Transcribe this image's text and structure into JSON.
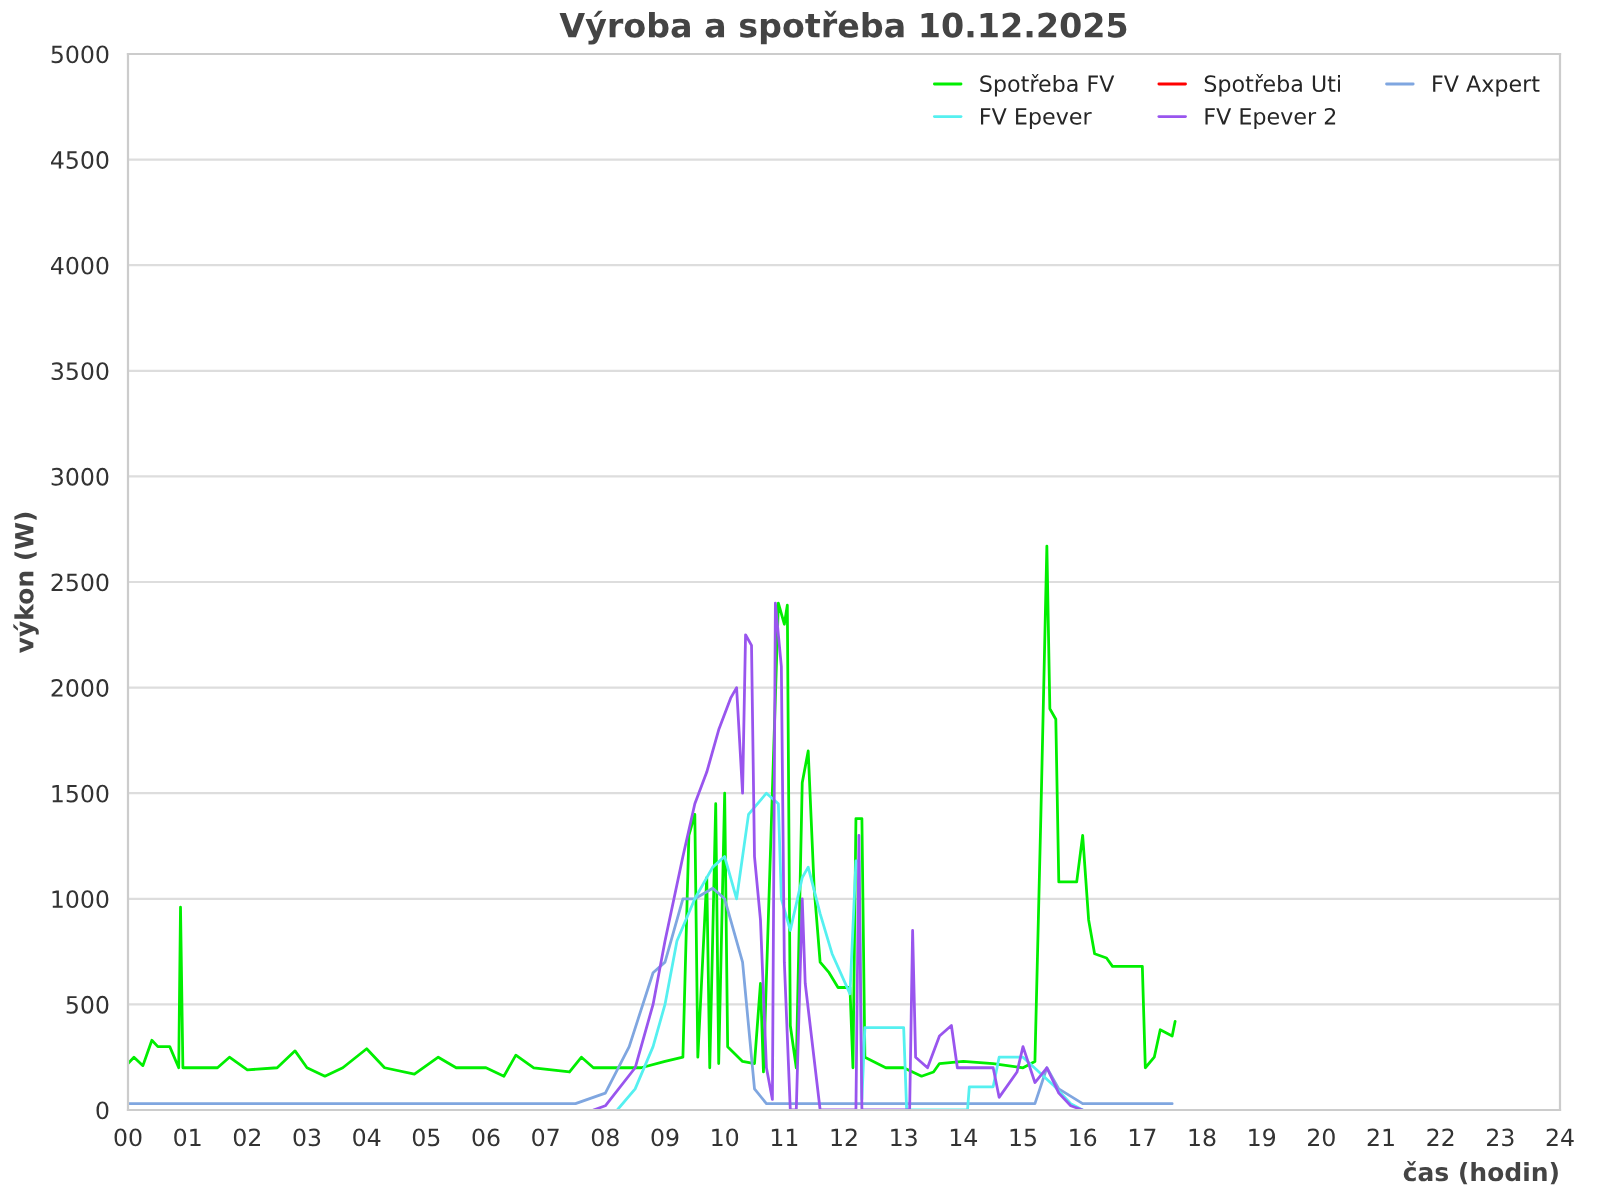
{
  "chart_data": {
    "type": "line",
    "title": "Výroba a spotřeba 10.12.2025",
    "xlabel": "čas (hodin)",
    "ylabel": "výkon (W)",
    "xlim": [
      0,
      24
    ],
    "ylim": [
      0,
      5000
    ],
    "xticks": [
      {
        "value": 0,
        "label": "00"
      },
      {
        "value": 1,
        "label": "01"
      },
      {
        "value": 2,
        "label": "02"
      },
      {
        "value": 3,
        "label": "03"
      },
      {
        "value": 4,
        "label": "04"
      },
      {
        "value": 5,
        "label": "05"
      },
      {
        "value": 6,
        "label": "06"
      },
      {
        "value": 7,
        "label": "07"
      },
      {
        "value": 8,
        "label": "08"
      },
      {
        "value": 9,
        "label": "09"
      },
      10,
      11,
      12,
      13,
      14,
      15,
      16,
      17,
      18,
      19,
      20,
      21,
      22,
      23,
      24
    ],
    "yticks": [
      0,
      500,
      1000,
      1500,
      2000,
      2500,
      3000,
      3500,
      4000,
      4500,
      5000
    ],
    "grid": "y",
    "legend": "top right",
    "series": [
      {
        "name": "Spotřeba FV",
        "color": "#00ee00",
        "x": [
          0.0,
          0.1,
          0.25,
          0.4,
          0.5,
          0.7,
          0.85,
          0.88,
          0.92,
          1.5,
          1.7,
          2.0,
          2.5,
          2.8,
          3.0,
          3.3,
          3.6,
          4.0,
          4.3,
          4.8,
          5.2,
          5.5,
          6.0,
          6.3,
          6.5,
          6.8,
          7.4,
          7.6,
          7.8,
          8.2,
          8.6,
          9.0,
          9.3,
          9.4,
          9.5,
          9.55,
          9.7,
          9.75,
          9.85,
          9.9,
          10.0,
          10.05,
          10.3,
          10.5,
          10.6,
          10.65,
          10.9,
          11.0,
          11.05,
          11.1,
          11.2,
          11.3,
          11.4,
          11.5,
          11.6,
          11.75,
          11.9,
          12.1,
          12.15,
          12.2,
          12.3,
          12.35,
          12.7,
          13.0,
          13.3,
          13.5,
          13.6,
          14.0,
          14.5,
          15.0,
          15.2,
          15.3,
          15.4,
          15.45,
          15.55,
          15.6,
          15.9,
          16.0,
          16.05,
          16.1,
          16.2,
          16.4,
          16.5,
          17.0,
          17.05,
          17.2,
          17.3,
          17.5,
          17.55
        ],
        "values": [
          220,
          250,
          210,
          330,
          300,
          300,
          200,
          960,
          200,
          200,
          250,
          190,
          200,
          280,
          200,
          160,
          200,
          290,
          200,
          170,
          250,
          200,
          200,
          160,
          260,
          200,
          180,
          250,
          200,
          200,
          200,
          230,
          250,
          1300,
          1400,
          250,
          1100,
          200,
          1450,
          220,
          1500,
          300,
          230,
          220,
          600,
          180,
          2400,
          2300,
          2390,
          400,
          200,
          1550,
          1700,
          1050,
          700,
          650,
          580,
          580,
          200,
          1380,
          1380,
          250,
          200,
          200,
          160,
          180,
          220,
          230,
          220,
          200,
          230,
          1400,
          2670,
          1900,
          1850,
          1080,
          1080,
          1300,
          1100,
          900,
          740,
          720,
          680,
          680,
          200,
          250,
          380,
          350,
          420
        ]
      },
      {
        "name": "Spotřeba Uti",
        "color": "#ff0000"
      },
      {
        "name": "FV Axpert",
        "color": "#7fa6e0",
        "x": [
          0,
          7.5,
          8.0,
          8.4,
          8.8,
          9.0,
          9.3,
          9.5,
          9.8,
          10.0,
          10.3,
          10.5,
          10.7,
          15.2,
          15.4,
          15.6,
          16.0,
          17.5
        ],
        "values": [
          30,
          30,
          80,
          300,
          650,
          700,
          1000,
          1000,
          1050,
          1000,
          700,
          100,
          30,
          30,
          200,
          100,
          30,
          30
        ]
      },
      {
        "name": "FV Epever",
        "color": "#55f0f0",
        "x": [
          8.2,
          8.5,
          8.8,
          9.0,
          9.2,
          9.5,
          9.8,
          10.0,
          10.2,
          10.4,
          10.7,
          10.9,
          10.95,
          11.1,
          11.3,
          11.4,
          11.6,
          11.8,
          12.1,
          12.2,
          12.25,
          12.3,
          12.35,
          13.0,
          13.05,
          14.07,
          14.1,
          14.5,
          14.6,
          15.0,
          15.5,
          15.8,
          16.0
        ],
        "values": [
          0,
          100,
          300,
          500,
          800,
          1000,
          1150,
          1200,
          1000,
          1400,
          1500,
          1450,
          1000,
          850,
          1100,
          1150,
          930,
          740,
          550,
          1180,
          1180,
          50,
          390,
          390,
          0,
          0,
          110,
          110,
          250,
          250,
          120,
          30,
          0
        ]
      },
      {
        "name": "FV Epever 2",
        "color": "#9955ee",
        "x": [
          7.8,
          8.0,
          8.5,
          8.8,
          9.0,
          9.3,
          9.5,
          9.7,
          9.9,
          10.1,
          10.2,
          10.3,
          10.35,
          10.45,
          10.5,
          10.6,
          10.7,
          10.8,
          10.85,
          10.95,
          11.0,
          11.1,
          11.2,
          11.3,
          11.35,
          11.6,
          12.2,
          12.25,
          12.3,
          13.1,
          13.15,
          13.2,
          13.4,
          13.6,
          13.8,
          13.9,
          14.5,
          14.6,
          14.9,
          15.0,
          15.2,
          15.4,
          15.6,
          15.8,
          16.0
        ],
        "values": [
          0,
          20,
          200,
          500,
          800,
          1200,
          1450,
          1600,
          1800,
          1950,
          2000,
          1500,
          2250,
          2200,
          1200,
          900,
          200,
          50,
          2400,
          2100,
          700,
          0,
          0,
          1000,
          600,
          0,
          0,
          1300,
          0,
          0,
          850,
          250,
          200,
          350,
          400,
          200,
          200,
          60,
          180,
          300,
          130,
          200,
          80,
          20,
          0
        ]
      }
    ]
  }
}
